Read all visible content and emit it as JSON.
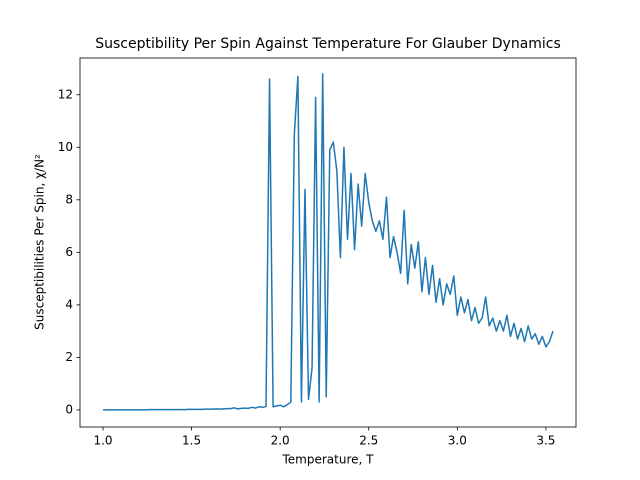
{
  "chart_data": {
    "type": "line",
    "title": "Susceptibility Per Spin Against Temperature For Glauber Dynamics",
    "x_label": "Temperature, T",
    "y_label": "Susceptibilities Per Spin, χ/N²",
    "x": [
      1.0,
      1.02,
      1.04,
      1.06,
      1.08,
      1.1,
      1.12,
      1.14,
      1.16,
      1.18,
      1.2,
      1.22,
      1.24,
      1.26,
      1.28,
      1.3,
      1.32,
      1.34,
      1.36,
      1.38,
      1.4,
      1.42,
      1.44,
      1.46,
      1.48,
      1.5,
      1.52,
      1.54,
      1.56,
      1.58,
      1.6,
      1.62,
      1.64,
      1.66,
      1.68,
      1.7,
      1.72,
      1.74,
      1.76,
      1.78,
      1.8,
      1.82,
      1.84,
      1.86,
      1.88,
      1.9,
      1.92,
      1.94,
      1.96,
      1.98,
      2.0,
      2.02,
      2.04,
      2.06,
      2.08,
      2.1,
      2.12,
      2.14,
      2.16,
      2.18,
      2.2,
      2.22,
      2.24,
      2.26,
      2.28,
      2.3,
      2.32,
      2.34,
      2.36,
      2.38,
      2.4,
      2.42,
      2.44,
      2.46,
      2.48,
      2.5,
      2.52,
      2.54,
      2.56,
      2.58,
      2.6,
      2.62,
      2.64,
      2.66,
      2.68,
      2.7,
      2.72,
      2.74,
      2.76,
      2.78,
      2.8,
      2.82,
      2.84,
      2.86,
      2.88,
      2.9,
      2.92,
      2.94,
      2.96,
      2.98,
      3.0,
      3.02,
      3.04,
      3.06,
      3.08,
      3.1,
      3.12,
      3.14,
      3.16,
      3.18,
      3.2,
      3.22,
      3.24,
      3.26,
      3.28,
      3.3,
      3.32,
      3.34,
      3.36,
      3.38,
      3.4,
      3.42,
      3.44,
      3.46,
      3.48,
      3.5,
      3.52,
      3.54
    ],
    "series": [
      {
        "color": "#1f77b4",
        "values": [
          0,
          0,
          0,
          0,
          0,
          0,
          0,
          0,
          0,
          0,
          0,
          0,
          0,
          0.01,
          0.01,
          0.01,
          0.01,
          0.01,
          0.01,
          0.01,
          0.01,
          0.01,
          0.01,
          0.01,
          0.02,
          0.02,
          0.02,
          0.02,
          0.02,
          0.03,
          0.03,
          0.03,
          0.04,
          0.03,
          0.04,
          0.05,
          0.05,
          0.08,
          0.04,
          0.06,
          0.07,
          0.06,
          0.1,
          0.07,
          0.12,
          0.1,
          0.13,
          12.6,
          0.12,
          0.15,
          0.18,
          0.12,
          0.2,
          0.3,
          10.5,
          12.7,
          0.3,
          8.4,
          0.4,
          1.6,
          11.9,
          0.3,
          12.8,
          0.5,
          9.9,
          10.2,
          9.1,
          5.8,
          10.0,
          6.5,
          9.0,
          6.1,
          8.6,
          7.0,
          9.0,
          7.9,
          7.2,
          6.8,
          7.2,
          6.5,
          8.1,
          5.8,
          6.6,
          6.0,
          5.2,
          7.6,
          4.8,
          6.3,
          5.4,
          6.4,
          4.5,
          5.8,
          4.4,
          5.5,
          4.1,
          5.0,
          4.0,
          4.8,
          4.4,
          5.1,
          3.6,
          4.3,
          3.7,
          4.2,
          3.4,
          3.9,
          3.3,
          3.5,
          4.3,
          3.2,
          3.5,
          3.0,
          3.4,
          3.0,
          3.6,
          2.8,
          3.3,
          2.7,
          3.1,
          2.6,
          3.2,
          2.7,
          2.9,
          2.5,
          2.8,
          2.4,
          2.6,
          3.0
        ]
      }
    ],
    "xlim": [
      0.87,
      3.67
    ],
    "ylim": [
      -0.65,
      13.4
    ],
    "xticks": [
      {
        "value": 1,
        "label": "1.0"
      },
      {
        "value": 1.5,
        "label": "1.5"
      },
      {
        "value": 2,
        "label": "2.0"
      },
      {
        "value": 2.5,
        "label": "2.5"
      },
      {
        "value": 3,
        "label": "3.0"
      },
      {
        "value": 3.5,
        "label": "3.5"
      }
    ],
    "yticks": [
      0,
      2,
      4,
      6,
      8,
      10,
      12
    ]
  }
}
